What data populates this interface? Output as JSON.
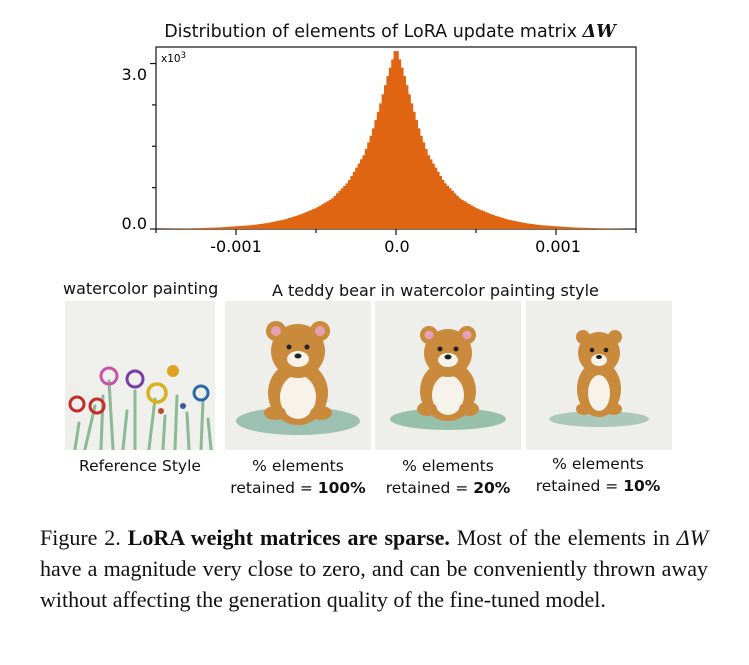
{
  "chart": {
    "title_prefix": "Distribution of elements of LoRA update matrix",
    "title_symbol": "ΔW",
    "y_multiplier": "x10",
    "y_multiplier_exp": "3",
    "y_ticks": [
      "3.0",
      "0.0"
    ],
    "x_ticks": [
      "-0.001",
      "0.0",
      "0.001"
    ],
    "bar_color": "#e06512"
  },
  "chart_data": {
    "type": "bar",
    "title": "Distribution of elements of LoRA update matrix ΔW",
    "xlabel": "",
    "ylabel": "",
    "xlim": [
      -0.0015,
      0.0015
    ],
    "ylim": [
      0,
      3.3
    ],
    "y_unit_multiplier": 1000,
    "x": [
      -0.0015,
      -0.0013,
      -0.0011,
      -0.0009,
      -0.0008,
      -0.0007,
      -0.0006,
      -0.0005,
      -0.0004,
      -0.0003,
      -0.0002,
      -0.00015,
      -0.0001,
      -5e-05,
      0.0,
      5e-05,
      0.0001,
      0.00015,
      0.0002,
      0.0003,
      0.0004,
      0.0005,
      0.0006,
      0.0007,
      0.0008,
      0.0009,
      0.0011,
      0.0013,
      0.0015
    ],
    "values": [
      0.0,
      0.01,
      0.03,
      0.07,
      0.11,
      0.17,
      0.26,
      0.38,
      0.55,
      0.85,
      1.35,
      1.75,
      2.25,
      2.8,
      3.3,
      2.8,
      2.25,
      1.75,
      1.35,
      0.85,
      0.55,
      0.38,
      0.26,
      0.17,
      0.11,
      0.07,
      0.03,
      0.01,
      0.0
    ]
  },
  "labels": {
    "watercolor": "watercolor painting",
    "prompt": "A teddy bear in watercolor painting style",
    "reference": "Reference Style",
    "pct_elements": "% elements",
    "retained_prefix": "retained = ",
    "retained_100": "100%",
    "retained_20": "20%",
    "retained_10": "10%"
  },
  "caption": {
    "fig": "Figure 2.",
    "bold": "LoRA weight matrices are sparse.",
    "text1": "Most of the elements in",
    "symbol": "ΔW",
    "text2": "have a magnitude very close to zero, and can be conveniently thrown away without affecting the generation quality of the fine-tuned model."
  },
  "colors": {
    "paper": "#eeeeea",
    "bear_body": "#c98a3c",
    "bear_dark": "#8a5218",
    "bear_belly": "#f7f3ea",
    "grass": "#5a9a82",
    "ear_pink": "#e6a0b4"
  }
}
